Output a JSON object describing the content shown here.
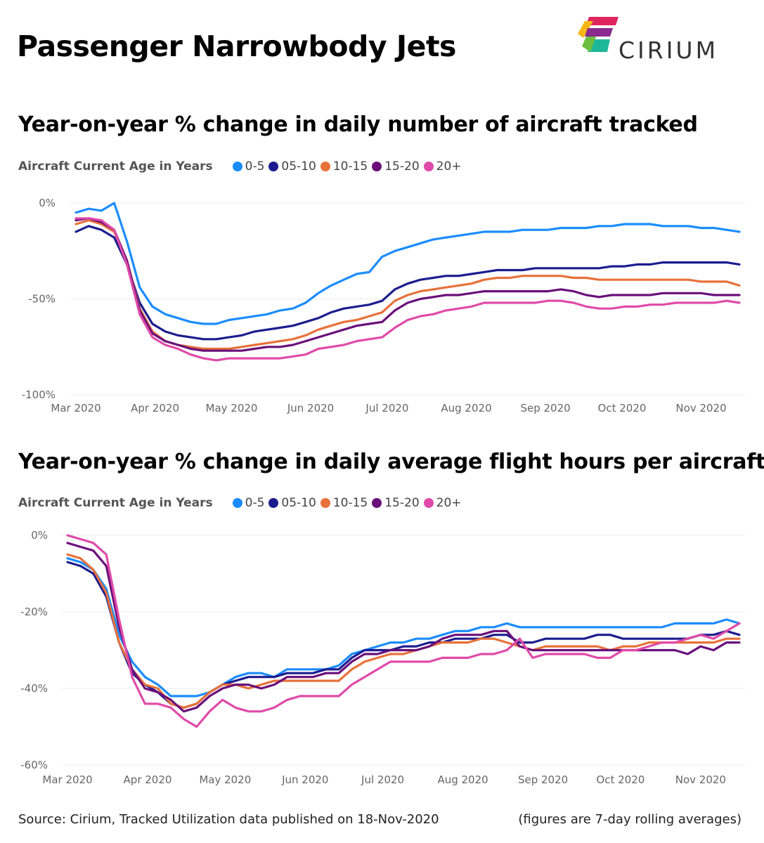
{
  "page": {
    "title": "Passenger Narrowbody Jets",
    "logo_text": "CIRIUM",
    "footer_source": "Source: Cirium, Tracked Utilization data published on 18-Nov-2020",
    "footer_note": "(figures are 7-day rolling averages)"
  },
  "colors": {
    "0-5": "#1a8cff",
    "05-10": "#1c1c8f",
    "10-15": "#e8713a",
    "15-20": "#6a0f7a",
    "20+": "#e04aa8"
  },
  "chart_data": [
    {
      "type": "line",
      "title": "Year-on-year % change in daily number of aircraft tracked",
      "legend_title": "Aircraft Current Age in Years",
      "legend_placement": "top-left",
      "x": [
        "Mar 2020",
        "Apr 2020",
        "May 2020",
        "Jun 2020",
        "Jul 2020",
        "Aug 2020",
        "Sep 2020",
        "Oct 2020",
        "Nov 2020"
      ],
      "x_values": [
        "2020-03-01",
        "2020-03-06",
        "2020-03-11",
        "2020-03-16",
        "2020-03-21",
        "2020-03-26",
        "2020-03-31",
        "2020-04-05",
        "2020-04-10",
        "2020-04-15",
        "2020-04-20",
        "2020-04-25",
        "2020-04-30",
        "2020-05-05",
        "2020-05-10",
        "2020-05-15",
        "2020-05-20",
        "2020-05-25",
        "2020-05-30",
        "2020-06-04",
        "2020-06-09",
        "2020-06-14",
        "2020-06-19",
        "2020-06-24",
        "2020-06-29",
        "2020-07-04",
        "2020-07-09",
        "2020-07-14",
        "2020-07-19",
        "2020-07-24",
        "2020-07-29",
        "2020-08-03",
        "2020-08-08",
        "2020-08-13",
        "2020-08-18",
        "2020-08-23",
        "2020-08-28",
        "2020-09-02",
        "2020-09-07",
        "2020-09-12",
        "2020-09-17",
        "2020-09-22",
        "2020-09-27",
        "2020-10-02",
        "2020-10-07",
        "2020-10-12",
        "2020-10-17",
        "2020-10-22",
        "2020-10-27",
        "2020-11-01",
        "2020-11-06",
        "2020-11-11",
        "2020-11-16"
      ],
      "y_ticks": [
        "0%",
        "-50%",
        "-100%"
      ],
      "ylim": [
        -100,
        0
      ],
      "grid": true,
      "series": [
        {
          "name": "0-5",
          "values": [
            -5,
            -3,
            -4,
            0,
            -20,
            -44,
            -54,
            -58,
            -60,
            -62,
            -63,
            -63,
            -61,
            -60,
            -59,
            -58,
            -56,
            -55,
            -52,
            -47,
            -43,
            -40,
            -37,
            -36,
            -28,
            -25,
            -23,
            -21,
            -19,
            -18,
            -17,
            -16,
            -15,
            -15,
            -15,
            -14,
            -14,
            -14,
            -13,
            -13,
            -13,
            -12,
            -12,
            -11,
            -11,
            -11,
            -12,
            -12,
            -12,
            -13,
            -13,
            -14,
            -15
          ]
        },
        {
          "name": "05-10",
          "values": [
            -15,
            -12,
            -14,
            -18,
            -32,
            -52,
            -63,
            -67,
            -69,
            -70,
            -71,
            -71,
            -70,
            -69,
            -67,
            -66,
            -65,
            -64,
            -62,
            -60,
            -57,
            -55,
            -54,
            -53,
            -51,
            -45,
            -42,
            -40,
            -39,
            -38,
            -38,
            -37,
            -36,
            -35,
            -35,
            -35,
            -34,
            -34,
            -34,
            -34,
            -34,
            -34,
            -33,
            -33,
            -32,
            -32,
            -31,
            -31,
            -31,
            -31,
            -31,
            -31,
            -32
          ]
        },
        {
          "name": "10-15",
          "values": [
            -11,
            -9,
            -11,
            -15,
            -30,
            -55,
            -67,
            -72,
            -74,
            -75,
            -76,
            -76,
            -76,
            -75,
            -74,
            -73,
            -72,
            -71,
            -69,
            -66,
            -64,
            -62,
            -61,
            -59,
            -57,
            -51,
            -48,
            -46,
            -45,
            -44,
            -43,
            -42,
            -40,
            -39,
            -39,
            -38,
            -38,
            -38,
            -38,
            -39,
            -39,
            -40,
            -40,
            -40,
            -40,
            -40,
            -40,
            -40,
            -40,
            -41,
            -41,
            -41,
            -43
          ]
        },
        {
          "name": "15-20",
          "values": [
            -9,
            -8,
            -10,
            -14,
            -30,
            -56,
            -68,
            -72,
            -74,
            -76,
            -77,
            -77,
            -77,
            -77,
            -76,
            -75,
            -75,
            -74,
            -72,
            -70,
            -68,
            -66,
            -64,
            -63,
            -62,
            -56,
            -52,
            -50,
            -49,
            -48,
            -48,
            -47,
            -46,
            -46,
            -46,
            -46,
            -46,
            -46,
            -45,
            -46,
            -48,
            -49,
            -48,
            -48,
            -48,
            -48,
            -47,
            -47,
            -47,
            -47,
            -48,
            -48,
            -48
          ]
        },
        {
          "name": "20+",
          "values": [
            -8,
            -8,
            -9,
            -14,
            -32,
            -58,
            -70,
            -74,
            -76,
            -79,
            -81,
            -82,
            -81,
            -81,
            -81,
            -81,
            -81,
            -80,
            -79,
            -76,
            -75,
            -74,
            -72,
            -71,
            -70,
            -65,
            -61,
            -59,
            -58,
            -56,
            -55,
            -54,
            -52,
            -52,
            -52,
            -52,
            -52,
            -51,
            -51,
            -52,
            -54,
            -55,
            -55,
            -54,
            -54,
            -53,
            -53,
            -52,
            -52,
            -52,
            -52,
            -51,
            -52
          ]
        }
      ]
    },
    {
      "type": "line",
      "title": "Year-on-year % change in daily average flight hours per aircraft",
      "legend_title": "Aircraft Current Age in Years",
      "legend_placement": "top-left",
      "x": [
        "Mar 2020",
        "Apr 2020",
        "May 2020",
        "Jun 2020",
        "Jul 2020",
        "Aug 2020",
        "Sep 2020",
        "Oct 2020",
        "Nov 2020"
      ],
      "x_values": [
        "2020-03-01",
        "2020-03-06",
        "2020-03-11",
        "2020-03-16",
        "2020-03-21",
        "2020-03-26",
        "2020-03-31",
        "2020-04-05",
        "2020-04-10",
        "2020-04-15",
        "2020-04-20",
        "2020-04-25",
        "2020-04-30",
        "2020-05-05",
        "2020-05-10",
        "2020-05-15",
        "2020-05-20",
        "2020-05-25",
        "2020-05-30",
        "2020-06-04",
        "2020-06-09",
        "2020-06-14",
        "2020-06-19",
        "2020-06-24",
        "2020-06-29",
        "2020-07-04",
        "2020-07-09",
        "2020-07-14",
        "2020-07-19",
        "2020-07-24",
        "2020-07-29",
        "2020-08-03",
        "2020-08-08",
        "2020-08-13",
        "2020-08-18",
        "2020-08-23",
        "2020-08-28",
        "2020-09-02",
        "2020-09-07",
        "2020-09-12",
        "2020-09-17",
        "2020-09-22",
        "2020-09-27",
        "2020-10-02",
        "2020-10-07",
        "2020-10-12",
        "2020-10-17",
        "2020-10-22",
        "2020-10-27",
        "2020-11-01",
        "2020-11-06",
        "2020-11-11",
        "2020-11-16"
      ],
      "y_ticks": [
        "0%",
        "-20%",
        "-40%",
        "-60%"
      ],
      "ylim": [
        -60,
        0
      ],
      "grid": true,
      "series": [
        {
          "name": "0-5",
          "values": [
            -6,
            -7,
            -9,
            -14,
            -26,
            -33,
            -37,
            -39,
            -42,
            -42,
            -42,
            -41,
            -39,
            -37,
            -36,
            -36,
            -37,
            -35,
            -35,
            -35,
            -35,
            -34,
            -31,
            -30,
            -29,
            -28,
            -28,
            -27,
            -27,
            -26,
            -25,
            -25,
            -24,
            -24,
            -23,
            -24,
            -24,
            -24,
            -24,
            -24,
            -24,
            -24,
            -24,
            -24,
            -24,
            -24,
            -24,
            -23,
            -23,
            -23,
            -23,
            -22,
            -23
          ]
        },
        {
          "name": "05-10",
          "values": [
            -7,
            -8,
            -10,
            -16,
            -28,
            -36,
            -39,
            -41,
            -44,
            -45,
            -44,
            -41,
            -39,
            -38,
            -37,
            -37,
            -37,
            -36,
            -36,
            -36,
            -35,
            -35,
            -32,
            -30,
            -30,
            -30,
            -29,
            -29,
            -28,
            -28,
            -27,
            -27,
            -27,
            -26,
            -26,
            -28,
            -28,
            -27,
            -27,
            -27,
            -27,
            -26,
            -26,
            -27,
            -27,
            -27,
            -27,
            -27,
            -27,
            -26,
            -26,
            -25,
            -26
          ]
        },
        {
          "name": "10-15",
          "values": [
            -5,
            -6,
            -9,
            -15,
            -28,
            -35,
            -39,
            -40,
            -44,
            -45,
            -44,
            -41,
            -39,
            -39,
            -40,
            -39,
            -38,
            -38,
            -38,
            -38,
            -38,
            -38,
            -35,
            -33,
            -32,
            -31,
            -31,
            -30,
            -29,
            -28,
            -28,
            -28,
            -27,
            -27,
            -28,
            -29,
            -30,
            -29,
            -29,
            -29,
            -29,
            -29,
            -30,
            -29,
            -29,
            -28,
            -28,
            -28,
            -28,
            -28,
            -28,
            -27,
            -27
          ]
        },
        {
          "name": "15-20",
          "values": [
            -2,
            -3,
            -4,
            -8,
            -24,
            -35,
            -40,
            -41,
            -43,
            -46,
            -45,
            -42,
            -40,
            -39,
            -39,
            -40,
            -39,
            -37,
            -37,
            -37,
            -36,
            -36,
            -33,
            -31,
            -31,
            -30,
            -30,
            -30,
            -29,
            -27,
            -26,
            -26,
            -26,
            -25,
            -25,
            -29,
            -30,
            -30,
            -30,
            -30,
            -30,
            -30,
            -30,
            -30,
            -30,
            -30,
            -30,
            -30,
            -31,
            -29,
            -30,
            -28,
            -28
          ]
        },
        {
          "name": "20+",
          "values": [
            0,
            -1,
            -2,
            -5,
            -22,
            -37,
            -44,
            -44,
            -45,
            -48,
            -50,
            -46,
            -43,
            -45,
            -46,
            -46,
            -45,
            -43,
            -42,
            -42,
            -42,
            -42,
            -39,
            -37,
            -35,
            -33,
            -33,
            -33,
            -33,
            -32,
            -32,
            -32,
            -31,
            -31,
            -30,
            -27,
            -32,
            -31,
            -31,
            -31,
            -31,
            -32,
            -32,
            -30,
            -30,
            -29,
            -28,
            -28,
            -27,
            -26,
            -27,
            -25,
            -23
          ]
        }
      ]
    }
  ]
}
